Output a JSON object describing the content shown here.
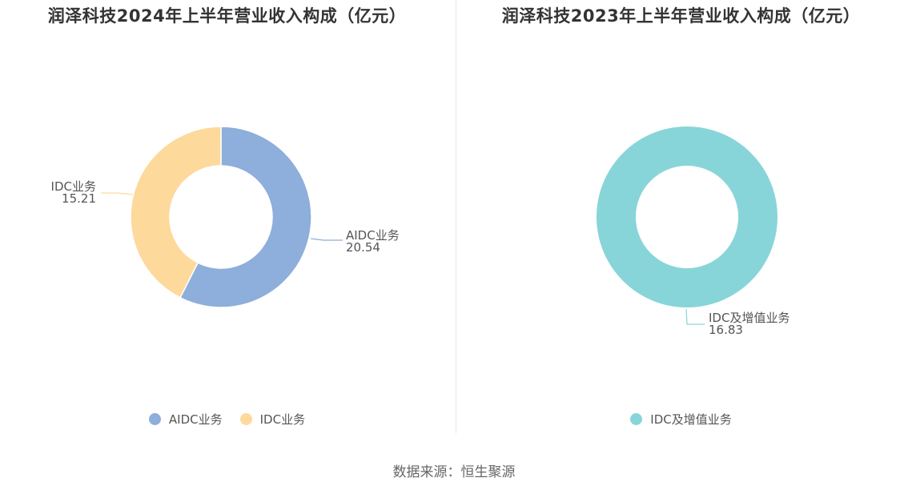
{
  "source": {
    "label": "数据来源：",
    "value": "恒生聚源"
  },
  "chart_data": [
    {
      "type": "pie",
      "title": "润泽科技2024年上半年营业收入构成（亿元）",
      "categories": [
        "AIDC业务",
        "IDC业务"
      ],
      "values": [
        20.54,
        15.21
      ],
      "colors": [
        "#8eaedb",
        "#fed99c"
      ],
      "value_labels": [
        "20.54",
        "15.21"
      ],
      "legend": "bottom",
      "donut": true
    },
    {
      "type": "pie",
      "title": "润泽科技2023年上半年营业收入构成（亿元）",
      "categories": [
        "IDC及增值业务"
      ],
      "values": [
        16.83
      ],
      "colors": [
        "#88d5d9"
      ],
      "value_labels": [
        "16.83"
      ],
      "legend": "bottom",
      "donut": true
    }
  ]
}
